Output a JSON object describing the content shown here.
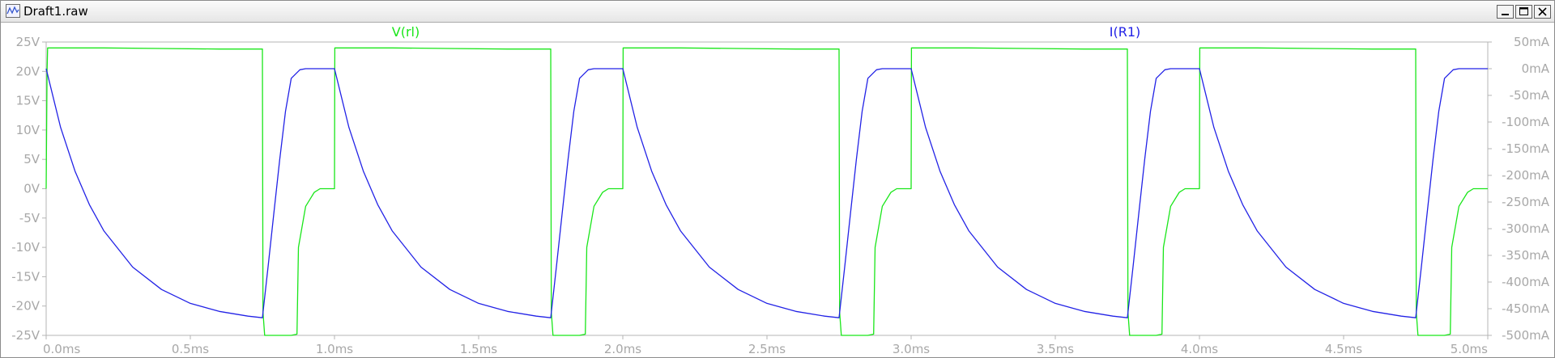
{
  "window": {
    "title": "Draft1.raw"
  },
  "colors": {
    "series_v": "#19e619",
    "series_i": "#2222e6",
    "axis_text": "#a8a8a8",
    "frame": "#b4b4b4"
  },
  "icons": {
    "app": "waveform-viewer-icon",
    "minimize": "minimize-icon",
    "maximize": "maximize-icon",
    "close": "close-icon"
  },
  "chart_data": {
    "type": "line",
    "title": "",
    "xlabel": "",
    "xlim": [
      0,
      5
    ],
    "ylim_left": [
      -25,
      25
    ],
    "ylim_right": [
      -500,
      50
    ],
    "grid": false,
    "legend": "top",
    "x_ticks": [
      {
        "v": 0,
        "label": "0.0ms"
      },
      {
        "v": 0.5,
        "label": "0.5ms"
      },
      {
        "v": 1,
        "label": "1.0ms"
      },
      {
        "v": 1.5,
        "label": "1.5ms"
      },
      {
        "v": 2,
        "label": "2.0ms"
      },
      {
        "v": 2.5,
        "label": "2.5ms"
      },
      {
        "v": 3,
        "label": "3.0ms"
      },
      {
        "v": 3.5,
        "label": "3.5ms"
      },
      {
        "v": 4,
        "label": "4.0ms"
      },
      {
        "v": 4.5,
        "label": "4.5ms"
      },
      {
        "v": 5,
        "label": "5.0ms"
      }
    ],
    "y_ticks_left": [
      {
        "v": 25,
        "label": "25V"
      },
      {
        "v": 20,
        "label": "20V"
      },
      {
        "v": 15,
        "label": "15V"
      },
      {
        "v": 10,
        "label": "10V"
      },
      {
        "v": 5,
        "label": "5V"
      },
      {
        "v": 0,
        "label": "0V"
      },
      {
        "v": -5,
        "label": "-5V"
      },
      {
        "v": -10,
        "label": "-10V"
      },
      {
        "v": -15,
        "label": "-15V"
      },
      {
        "v": -20,
        "label": "-20V"
      },
      {
        "v": -25,
        "label": "-25V"
      }
    ],
    "y_ticks_right": [
      {
        "v": 50,
        "label": "50mA"
      },
      {
        "v": 0,
        "label": "0mA"
      },
      {
        "v": -50,
        "label": "-50mA"
      },
      {
        "v": -100,
        "label": "-100mA"
      },
      {
        "v": -150,
        "label": "-150mA"
      },
      {
        "v": -200,
        "label": "-200mA"
      },
      {
        "v": -250,
        "label": "-250mA"
      },
      {
        "v": -300,
        "label": "-300mA"
      },
      {
        "v": -350,
        "label": "-350mA"
      },
      {
        "v": -400,
        "label": "-400mA"
      },
      {
        "v": -450,
        "label": "-450mA"
      },
      {
        "v": -500,
        "label": "-500mA"
      }
    ],
    "series": [
      {
        "name": "V(rl)",
        "axis": "left",
        "color": "#19e619",
        "x": [
          0,
          0.003,
          0.005,
          0.01,
          0.2,
          0.4,
          0.6,
          0.75,
          0.752,
          0.758,
          0.77,
          0.85,
          0.87,
          0.875,
          0.9,
          0.93,
          0.95,
          1.0,
          1.001,
          1.003,
          1.2,
          1.4,
          1.6,
          1.75,
          1.752,
          1.758,
          1.77,
          1.85,
          1.87,
          1.875,
          1.9,
          1.93,
          1.95,
          2.0,
          2.001,
          2.003,
          2.2,
          2.4,
          2.6,
          2.75,
          2.752,
          2.758,
          2.77,
          2.85,
          2.87,
          2.875,
          2.9,
          2.93,
          2.95,
          3.0,
          3.001,
          3.003,
          3.2,
          3.4,
          3.6,
          3.75,
          3.752,
          3.758,
          3.77,
          3.85,
          3.87,
          3.875,
          3.9,
          3.93,
          3.95,
          4.0,
          4.001,
          4.003,
          4.2,
          4.4,
          4.6,
          4.75,
          4.752,
          4.758,
          4.77,
          4.85,
          4.87,
          4.875,
          4.9,
          4.93,
          4.95,
          5.0
        ],
        "y": [
          0,
          20,
          24,
          24,
          24,
          23.9,
          23.8,
          23.8,
          -21,
          -25,
          -25,
          -25,
          -24.8,
          -10,
          -3,
          -0.6,
          0,
          0,
          24,
          24,
          24,
          23.9,
          23.8,
          23.8,
          -21,
          -25,
          -25,
          -25,
          -24.8,
          -10,
          -3,
          -0.6,
          0,
          0,
          24,
          24,
          24,
          23.9,
          23.8,
          23.8,
          -21,
          -25,
          -25,
          -25,
          -24.8,
          -10,
          -3,
          -0.6,
          0,
          0,
          24,
          24,
          24,
          23.9,
          23.8,
          23.8,
          -21,
          -25,
          -25,
          -25,
          -24.8,
          -10,
          -3,
          -0.6,
          0,
          0,
          24,
          24,
          24,
          23.9,
          23.8,
          23.8,
          -21,
          -25,
          -25,
          -25,
          -24.8,
          -10,
          -3,
          -0.6,
          0,
          0
        ]
      },
      {
        "name": "I(R1)",
        "axis": "right",
        "color": "#2222e6",
        "x": [
          0,
          0.05,
          0.1,
          0.15,
          0.2,
          0.3,
          0.4,
          0.5,
          0.6,
          0.7,
          0.75,
          0.77,
          0.79,
          0.81,
          0.83,
          0.85,
          0.88,
          0.9,
          0.95,
          1.0,
          1.05,
          1.1,
          1.15,
          1.2,
          1.3,
          1.4,
          1.5,
          1.6,
          1.7,
          1.75,
          1.77,
          1.79,
          1.81,
          1.83,
          1.85,
          1.88,
          1.9,
          1.95,
          2.0,
          2.05,
          2.1,
          2.15,
          2.2,
          2.3,
          2.4,
          2.5,
          2.6,
          2.7,
          2.75,
          2.77,
          2.79,
          2.81,
          2.83,
          2.85,
          2.88,
          2.9,
          2.95,
          3.0,
          3.05,
          3.1,
          3.15,
          3.2,
          3.3,
          3.4,
          3.5,
          3.6,
          3.7,
          3.75,
          3.77,
          3.79,
          3.81,
          3.83,
          3.85,
          3.88,
          3.9,
          3.95,
          4.0,
          4.05,
          4.1,
          4.15,
          4.2,
          4.3,
          4.4,
          4.5,
          4.6,
          4.7,
          4.75,
          4.77,
          4.79,
          4.81,
          4.83,
          4.85,
          4.88,
          4.9,
          4.95,
          5.0
        ],
        "y": [
          0,
          -110,
          -192,
          -255,
          -304,
          -372,
          -414,
          -440,
          -455,
          -464,
          -467,
          -370,
          -270,
          -170,
          -80,
          -18,
          -2,
          0,
          0,
          0,
          -110,
          -192,
          -255,
          -304,
          -372,
          -414,
          -440,
          -455,
          -464,
          -467,
          -370,
          -270,
          -170,
          -80,
          -18,
          -2,
          0,
          0,
          0,
          -110,
          -192,
          -255,
          -304,
          -372,
          -414,
          -440,
          -455,
          -464,
          -467,
          -370,
          -270,
          -170,
          -80,
          -18,
          -2,
          0,
          0,
          0,
          -110,
          -192,
          -255,
          -304,
          -372,
          -414,
          -440,
          -455,
          -464,
          -467,
          -370,
          -270,
          -170,
          -80,
          -18,
          -2,
          0,
          0,
          0,
          -110,
          -192,
          -255,
          -304,
          -372,
          -414,
          -440,
          -455,
          -464,
          -467,
          -370,
          -270,
          -170,
          -80,
          -18,
          -2,
          0,
          0,
          0
        ]
      }
    ]
  }
}
